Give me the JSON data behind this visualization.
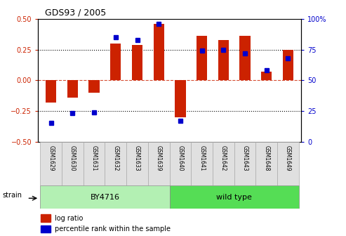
{
  "title": "GDS93 / 2005",
  "samples": [
    "GSM1629",
    "GSM1630",
    "GSM1631",
    "GSM1632",
    "GSM1633",
    "GSM1639",
    "GSM1640",
    "GSM1641",
    "GSM1642",
    "GSM1643",
    "GSM1648",
    "GSM1649"
  ],
  "log_ratio": [
    -0.18,
    -0.14,
    -0.1,
    0.3,
    0.29,
    0.46,
    -0.3,
    0.36,
    0.33,
    0.36,
    0.07,
    0.25
  ],
  "percentile": [
    15,
    23,
    24,
    85,
    83,
    96,
    17,
    74,
    75,
    72,
    58,
    68
  ],
  "strain_groups": [
    {
      "label": "BY4716",
      "start": 0,
      "end": 6,
      "color": "#b3f0b3"
    },
    {
      "label": "wild type",
      "start": 6,
      "end": 12,
      "color": "#55dd55"
    }
  ],
  "bar_color": "#cc2200",
  "dot_color": "#0000cc",
  "ylim_left": [
    -0.5,
    0.5
  ],
  "ylim_right": [
    0,
    100
  ],
  "yticks_left": [
    -0.5,
    -0.25,
    0,
    0.25,
    0.5
  ],
  "yticks_right": [
    0,
    25,
    50,
    75,
    100
  ],
  "hlines_dotted": [
    -0.25,
    0.25
  ],
  "hline_dashed": 0,
  "background_color": "#ffffff",
  "tick_color_left": "#cc2200",
  "tick_color_right": "#0000cc",
  "legend_log_ratio": "log ratio",
  "legend_percentile": "percentile rank within the sample",
  "strain_label": "strain",
  "bar_width": 0.5
}
